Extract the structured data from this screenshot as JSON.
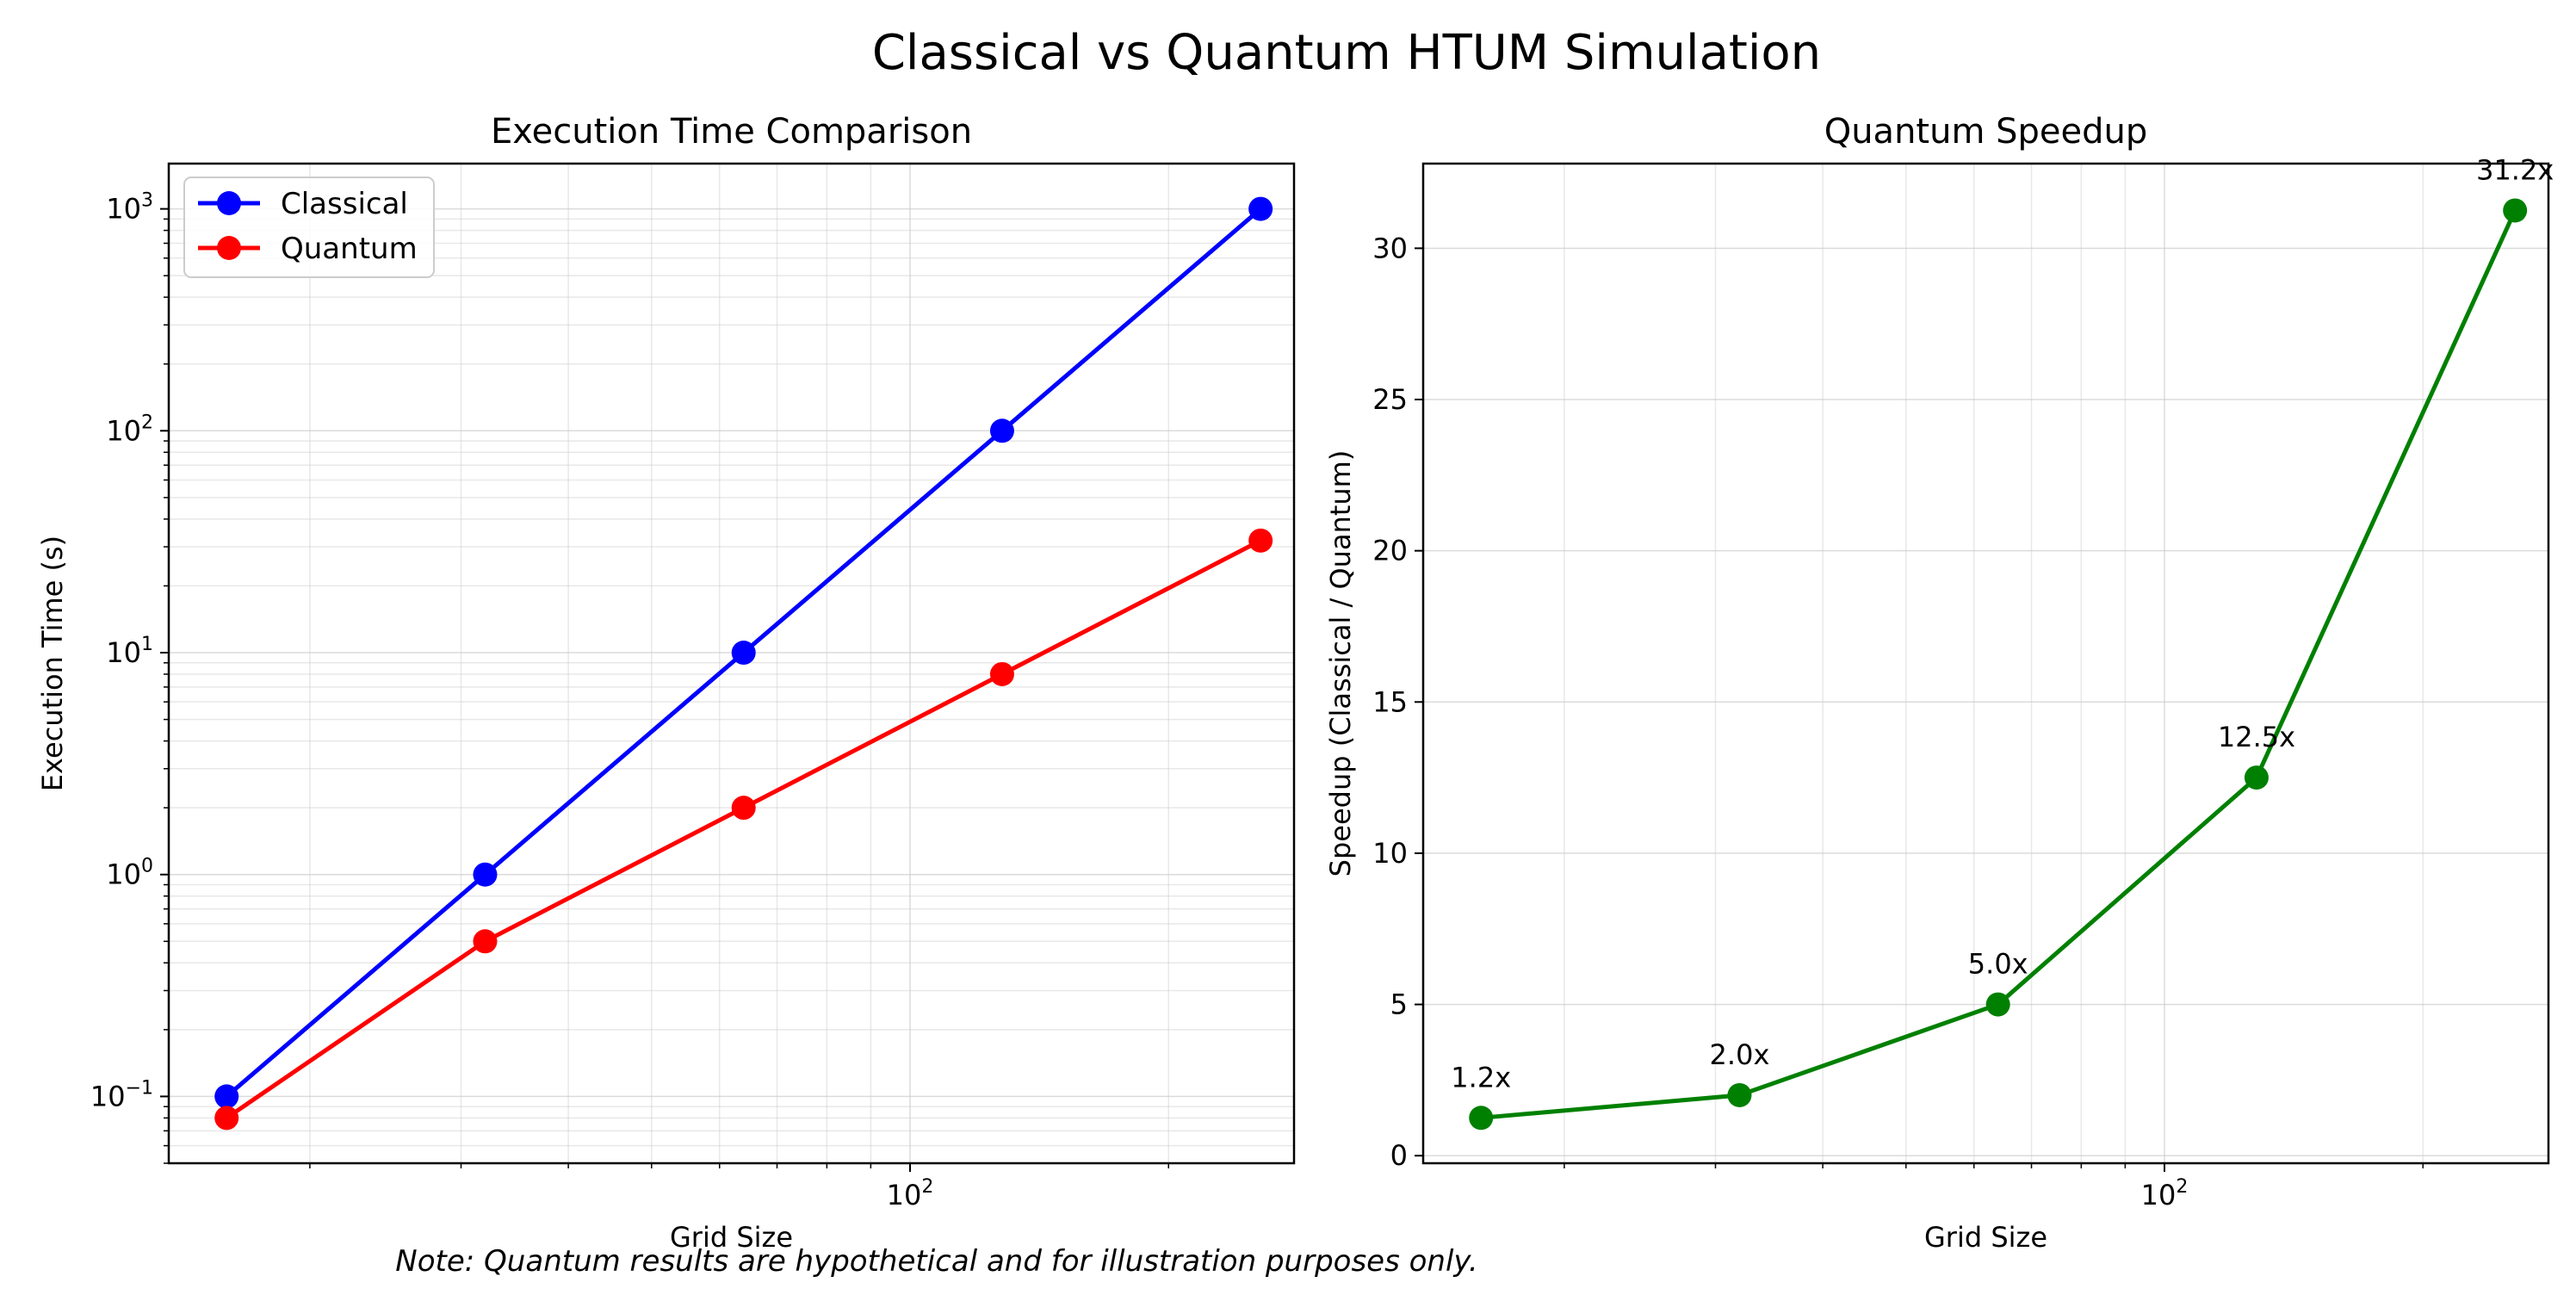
{
  "figure": {
    "suptitle": "Classical vs Quantum HTUM Simulation",
    "note": "Note: Quantum results are hypothetical and for illustration purposes only."
  },
  "chart_data": [
    {
      "type": "line",
      "title": "Execution Time Comparison",
      "xlabel": "Grid Size",
      "ylabel": "Execution Time (s)",
      "xscale": "log",
      "yscale": "log",
      "xlim": [
        13.7,
        280
      ],
      "ylim": [
        0.05,
        1600
      ],
      "x_ticks": [
        {
          "value": 100,
          "base": "10",
          "exp": "2"
        }
      ],
      "y_ticks": [
        {
          "value": 0.1,
          "base": "10",
          "exp": "−1"
        },
        {
          "value": 1,
          "base": "10",
          "exp": "0"
        },
        {
          "value": 10,
          "base": "10",
          "exp": "1"
        },
        {
          "value": 100,
          "base": "10",
          "exp": "2"
        },
        {
          "value": 1000,
          "base": "10",
          "exp": "3"
        }
      ],
      "grid": true,
      "legend_position": "top-left",
      "x": [
        16,
        32,
        64,
        128,
        256
      ],
      "series": [
        {
          "name": "Classical",
          "color": "#0000ff",
          "values": [
            0.1,
            1,
            10,
            100,
            1000
          ]
        },
        {
          "name": "Quantum",
          "color": "#ff0000",
          "values": [
            0.08,
            0.5,
            2,
            8,
            32
          ]
        }
      ]
    },
    {
      "type": "line",
      "title": "Quantum Speedup",
      "xlabel": "Grid Size",
      "ylabel": "Speedup (Classical / Quantum)",
      "xscale": "log",
      "yscale": "linear",
      "xlim": [
        13.7,
        280
      ],
      "ylim": [
        -0.25,
        32.8
      ],
      "x_ticks": [
        {
          "value": 100,
          "base": "10",
          "exp": "2"
        }
      ],
      "y_ticks": [
        0,
        5,
        10,
        15,
        20,
        25,
        30
      ],
      "grid": true,
      "x": [
        16,
        32,
        64,
        128,
        256
      ],
      "series": [
        {
          "color": "#008000",
          "values": [
            1.25,
            2.0,
            5.0,
            12.5,
            31.25
          ],
          "labels": [
            "1.2x",
            "2.0x",
            "5.0x",
            "12.5x",
            "31.2x"
          ]
        }
      ]
    }
  ]
}
